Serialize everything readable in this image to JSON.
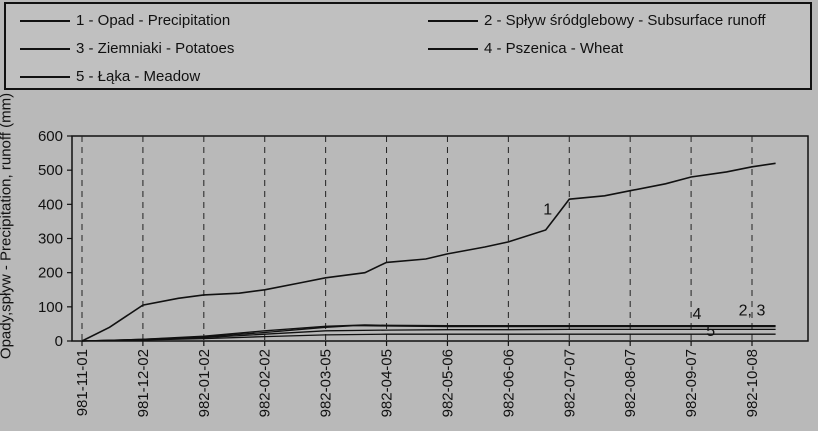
{
  "chart_data": {
    "type": "line",
    "ylabel": "Opady,spływ - Precipitation, runoff (mm)",
    "xlabel": "",
    "ylim": [
      0,
      600
    ],
    "yticks": [
      0,
      100,
      200,
      300,
      400,
      500,
      600
    ],
    "x_tick_labels": [
      "981-11-01",
      "981-12-02",
      "982-01-02",
      "982-02-02",
      "982-03-05",
      "982-04-05",
      "982-05-06",
      "982-06-06",
      "982-07-07",
      "982-08-07",
      "982-09-07",
      "982-10-08"
    ],
    "grid": "dashed vertical lines at x ticks",
    "legend": [
      {
        "label": "1 - Opad - Precipitation"
      },
      {
        "label": "2 - Spływ śródglebowy - Subsurface runoff"
      },
      {
        "label": "3 - Ziemniaki - Potatoes"
      },
      {
        "label": "4 - Pszenica - Wheat"
      },
      {
        "label": "5 - Łąka - Meadow"
      }
    ],
    "annotations": [
      {
        "text": "1",
        "at": {
          "x": "982-06-26",
          "y": 370
        }
      },
      {
        "text": "4",
        "at": {
          "x": "982-09-10",
          "y": 65
        }
      },
      {
        "text": "2,  3",
        "at": {
          "x": "982-10-08",
          "y": 75
        }
      },
      {
        "text": "5",
        "at": {
          "x": "982-09-17",
          "y": 15
        }
      }
    ],
    "series": [
      {
        "name": "1 - Opad - Precipitation",
        "x": [
          "981-11-01",
          "981-11-15",
          "981-12-02",
          "981-12-20",
          "982-01-02",
          "982-01-20",
          "982-02-02",
          "982-02-20",
          "982-03-05",
          "982-03-25",
          "982-04-05",
          "982-04-25",
          "982-05-06",
          "982-05-25",
          "982-06-06",
          "982-06-25",
          "982-07-01",
          "982-07-07",
          "982-07-25",
          "982-08-07",
          "982-08-25",
          "982-09-07",
          "982-09-25",
          "982-10-08",
          "982-10-20"
        ],
        "values": [
          0,
          40,
          105,
          125,
          135,
          140,
          150,
          170,
          185,
          200,
          230,
          240,
          255,
          275,
          290,
          325,
          370,
          415,
          425,
          440,
          460,
          480,
          495,
          510,
          520
        ]
      },
      {
        "name": "2 - Spływ śródglebowy - Subsurface runoff",
        "x": [
          "981-11-01",
          "981-12-02",
          "982-01-02",
          "982-02-02",
          "982-03-05",
          "982-03-20",
          "982-04-05",
          "982-05-06",
          "982-06-06",
          "982-07-07",
          "982-08-07",
          "982-09-07",
          "982-10-08",
          "982-10-20"
        ],
        "values": [
          0,
          5,
          12,
          25,
          40,
          45,
          44,
          42,
          42,
          42,
          42,
          42,
          42,
          42
        ]
      },
      {
        "name": "3 - Ziemniaki - Potatoes",
        "x": [
          "981-11-01",
          "981-12-02",
          "982-01-02",
          "982-02-02",
          "982-03-05",
          "982-03-25",
          "982-04-05",
          "982-05-06",
          "982-06-06",
          "982-07-07",
          "982-08-07",
          "982-09-07",
          "982-10-08",
          "982-10-20"
        ],
        "values": [
          0,
          5,
          14,
          30,
          43,
          47,
          46,
          45,
          45,
          45,
          45,
          45,
          45,
          45
        ]
      },
      {
        "name": "4 - Pszenica - Wheat",
        "x": [
          "981-11-01",
          "981-12-02",
          "982-01-02",
          "982-02-02",
          "982-03-05",
          "982-04-05",
          "982-05-06",
          "982-06-06",
          "982-07-07",
          "982-08-07",
          "982-09-07",
          "982-10-08",
          "982-10-20"
        ],
        "values": [
          0,
          4,
          10,
          20,
          30,
          32,
          33,
          33,
          34,
          34,
          34,
          34,
          34
        ]
      },
      {
        "name": "5 - Łąka - Meadow",
        "x": [
          "981-11-01",
          "981-12-02",
          "982-01-02",
          "982-02-02",
          "982-03-05",
          "982-04-05",
          "982-05-06",
          "982-06-06",
          "982-07-07",
          "982-08-07",
          "982-09-07",
          "982-10-08",
          "982-10-20"
        ],
        "values": [
          0,
          3,
          7,
          13,
          18,
          20,
          20,
          20,
          20,
          20,
          20,
          20,
          20
        ]
      }
    ]
  }
}
